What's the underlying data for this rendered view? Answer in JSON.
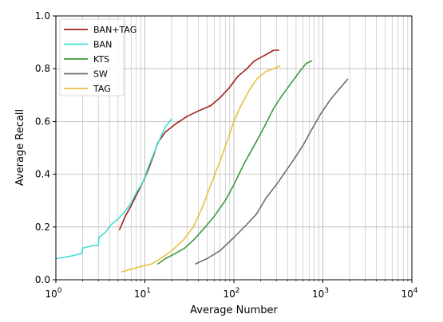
{
  "chart_data": {
    "type": "line",
    "xlabel": "Average Number",
    "ylabel": "Average Recall",
    "xscale": "log",
    "xlim": [
      1,
      10000
    ],
    "ylim": [
      0.0,
      1.0
    ],
    "grid": true,
    "legend_position": "top-left",
    "x_ticks": [
      {
        "value": 1,
        "base": "10",
        "exp": "0"
      },
      {
        "value": 10,
        "base": "10",
        "exp": "1"
      },
      {
        "value": 100,
        "base": "10",
        "exp": "2"
      },
      {
        "value": 1000,
        "base": "10",
        "exp": "3"
      },
      {
        "value": 10000,
        "base": "10",
        "exp": "4"
      }
    ],
    "y_ticks": [
      {
        "value": 0.0,
        "label": "0.0"
      },
      {
        "value": 0.2,
        "label": "0.2"
      },
      {
        "value": 0.4,
        "label": "0.4"
      },
      {
        "value": 0.6,
        "label": "0.6"
      },
      {
        "value": 0.8,
        "label": "0.8"
      },
      {
        "value": 1.0,
        "label": "1.0"
      }
    ],
    "series": [
      {
        "name": "BAN+TAG",
        "color": "#a02020",
        "points": [
          [
            5.2,
            0.19
          ],
          [
            6.0,
            0.24
          ],
          [
            7.0,
            0.28
          ],
          [
            8.0,
            0.32
          ],
          [
            9.5,
            0.37
          ],
          [
            11.0,
            0.42
          ],
          [
            12.5,
            0.47
          ],
          [
            14.0,
            0.52
          ],
          [
            17.0,
            0.56
          ],
          [
            22.0,
            0.59
          ],
          [
            30.0,
            0.62
          ],
          [
            40.0,
            0.64
          ],
          [
            55.0,
            0.66
          ],
          [
            70.0,
            0.69
          ],
          [
            90.0,
            0.73
          ],
          [
            110.0,
            0.77
          ],
          [
            140.0,
            0.8
          ],
          [
            170.0,
            0.83
          ],
          [
            220.0,
            0.85
          ],
          [
            280.0,
            0.87
          ],
          [
            320.0,
            0.87
          ]
        ]
      },
      {
        "name": "BAN",
        "color": "#40e0d0",
        "points": [
          [
            1.0,
            0.08
          ],
          [
            1.5,
            0.09
          ],
          [
            1.95,
            0.1
          ],
          [
            2.0,
            0.12
          ],
          [
            2.6,
            0.13
          ],
          [
            3.0,
            0.13
          ],
          [
            3.05,
            0.16
          ],
          [
            3.6,
            0.18
          ],
          [
            4.2,
            0.21
          ],
          [
            5.0,
            0.23
          ],
          [
            6.0,
            0.26
          ],
          [
            7.0,
            0.29
          ],
          [
            8.0,
            0.33
          ],
          [
            9.5,
            0.37
          ],
          [
            11.0,
            0.43
          ],
          [
            13.0,
            0.49
          ],
          [
            15.0,
            0.54
          ],
          [
            17.0,
            0.58
          ],
          [
            19.0,
            0.6
          ],
          [
            20.0,
            0.61
          ]
        ]
      },
      {
        "name": "KTS",
        "color": "#3a9a3a",
        "points": [
          [
            14.0,
            0.06
          ],
          [
            17.0,
            0.08
          ],
          [
            22.0,
            0.1
          ],
          [
            28.0,
            0.12
          ],
          [
            35.0,
            0.15
          ],
          [
            45.0,
            0.19
          ],
          [
            60.0,
            0.24
          ],
          [
            80.0,
            0.3
          ],
          [
            100.0,
            0.36
          ],
          [
            130.0,
            0.44
          ],
          [
            170.0,
            0.51
          ],
          [
            220.0,
            0.58
          ],
          [
            280.0,
            0.65
          ],
          [
            350.0,
            0.7
          ],
          [
            450.0,
            0.75
          ],
          [
            550.0,
            0.79
          ],
          [
            650.0,
            0.82
          ],
          [
            750.0,
            0.83
          ]
        ]
      },
      {
        "name": "SW",
        "color": "#6e6e6e",
        "points": [
          [
            37.0,
            0.06
          ],
          [
            50.0,
            0.08
          ],
          [
            70.0,
            0.11
          ],
          [
            100.0,
            0.16
          ],
          [
            140.0,
            0.21
          ],
          [
            180.0,
            0.25
          ],
          [
            230.0,
            0.31
          ],
          [
            300.0,
            0.36
          ],
          [
            380.0,
            0.41
          ],
          [
            480.0,
            0.46
          ],
          [
            600.0,
            0.51
          ],
          [
            750.0,
            0.57
          ],
          [
            950.0,
            0.63
          ],
          [
            1200.0,
            0.68
          ],
          [
            1500.0,
            0.72
          ],
          [
            1900.0,
            0.76
          ]
        ]
      },
      {
        "name": "TAG",
        "color": "#e8c040",
        "points": [
          [
            5.5,
            0.03
          ],
          [
            7.0,
            0.04
          ],
          [
            9.0,
            0.05
          ],
          [
            12.0,
            0.06
          ],
          [
            15.0,
            0.08
          ],
          [
            20.0,
            0.11
          ],
          [
            27.0,
            0.15
          ],
          [
            35.0,
            0.2
          ],
          [
            45.0,
            0.28
          ],
          [
            55.0,
            0.36
          ],
          [
            70.0,
            0.45
          ],
          [
            85.0,
            0.53
          ],
          [
            100.0,
            0.6
          ],
          [
            120.0,
            0.66
          ],
          [
            150.0,
            0.72
          ],
          [
            180.0,
            0.76
          ],
          [
            230.0,
            0.79
          ],
          [
            280.0,
            0.8
          ],
          [
            330.0,
            0.81
          ]
        ]
      }
    ]
  }
}
